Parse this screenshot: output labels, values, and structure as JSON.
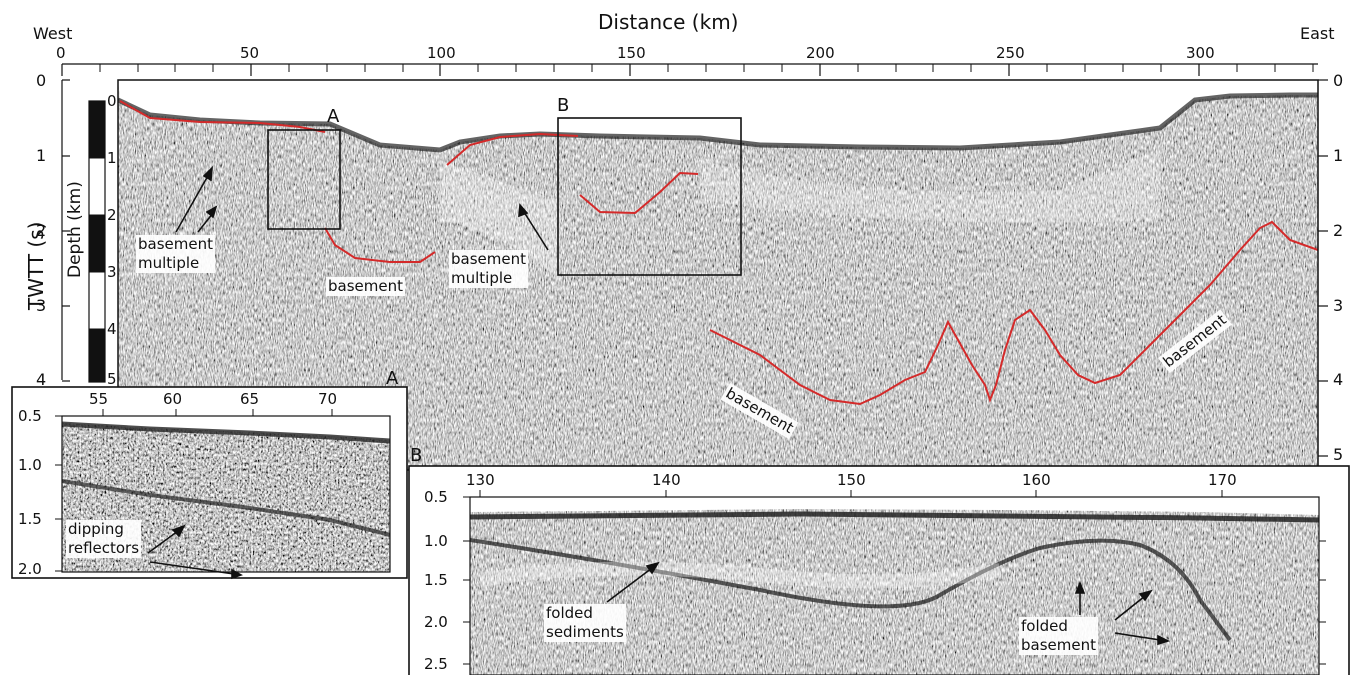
{
  "figure": {
    "top_axis_label": "Distance (km)",
    "left_axis_label": "TWTT (s)",
    "depth_label": "Depth (km)",
    "west_label": "West",
    "east_label": "East",
    "box_a_label": "A",
    "box_b_label": "B",
    "inset_a_label": "A",
    "inset_b_label": "B",
    "distance_ticks": [
      "0",
      "50",
      "100",
      "150",
      "200",
      "250",
      "300"
    ],
    "twtt_ticks_left": [
      "0",
      "1",
      "2",
      "3",
      "4"
    ],
    "twtt_ticks_right": [
      "0",
      "1",
      "2",
      "3",
      "4",
      "5"
    ],
    "depth_ticks": [
      "0",
      "1",
      "2",
      "3",
      "4",
      "5"
    ],
    "annotations": {
      "basement_multiple_1": "basement\nmultiple",
      "basement_1": "basement",
      "basement_multiple_2": "basement\nmultiple",
      "basement_2": "basement",
      "basement_3": "basement"
    }
  },
  "inset_a": {
    "x_ticks": [
      "55",
      "60",
      "65",
      "70"
    ],
    "y_ticks": [
      "0.5",
      "1.0",
      "1.5",
      "2.0"
    ],
    "annotation": "dipping\nreflectors"
  },
  "inset_b": {
    "x_ticks": [
      "130",
      "140",
      "150",
      "160",
      "170"
    ],
    "y_ticks": [
      "0.5",
      "1.0",
      "1.5",
      "2.0",
      "2.5"
    ],
    "annotation_sediments": "folded\nsediments",
    "annotation_basement": "folded\nbasement"
  },
  "colors": {
    "basement_line": "#d42a2a",
    "frame": "#111111"
  }
}
